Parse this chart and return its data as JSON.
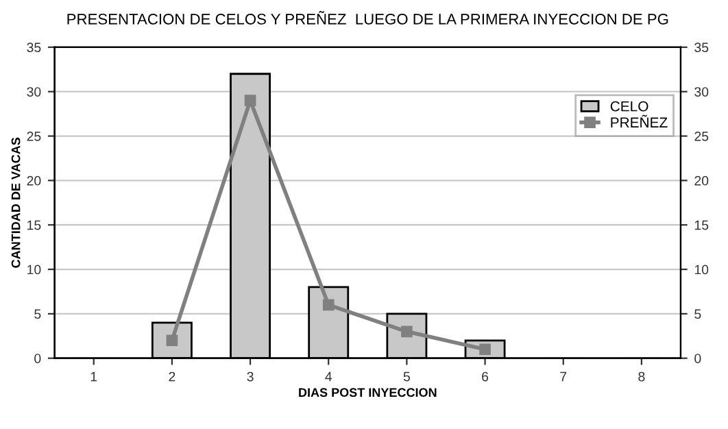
{
  "chart_data": {
    "type": "bar",
    "title": "PRESENTACION DE CELOS Y PREÑEZ  LUEGO DE LA PRIMERA INYECCION DE PG",
    "xlabel": "DIAS POST INYECCION",
    "ylabel": "CANTIDAD DE VACAS",
    "categories": [
      "1",
      "2",
      "3",
      "4",
      "5",
      "6",
      "7",
      "8"
    ],
    "series": [
      {
        "name": "CELO",
        "color": "#c8c8c8",
        "values": [
          0,
          4,
          32,
          8,
          5,
          2,
          0,
          0
        ]
      },
      {
        "name": "PREÑEZ",
        "type": "line",
        "color": "#808080",
        "marker": "square",
        "values": [
          null,
          2,
          29,
          6,
          3,
          1,
          null,
          null
        ]
      }
    ],
    "ylim": [
      0,
      35
    ],
    "yticks": [
      0,
      5,
      10,
      15,
      20,
      25,
      30,
      35
    ],
    "y2lim": [
      0,
      35
    ],
    "y2ticks": [
      0,
      5,
      10,
      15,
      20,
      25,
      30,
      35
    ],
    "grid": true,
    "legend": "right"
  }
}
